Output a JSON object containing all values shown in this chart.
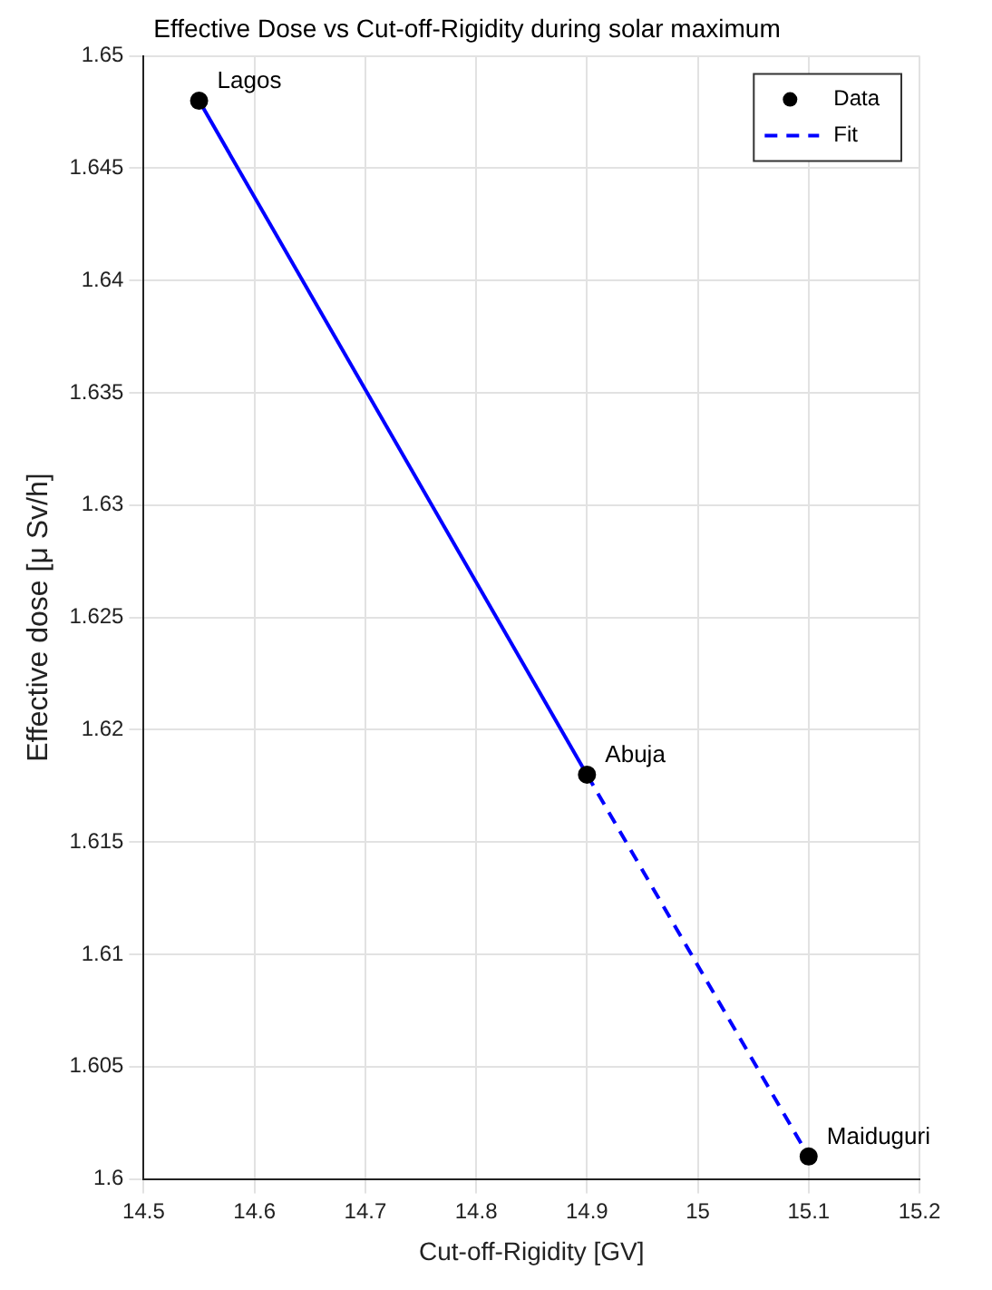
{
  "chart_data": {
    "type": "scatter",
    "title": "Effective Dose vs Cut-off-Rigidity during solar maximum",
    "xlabel": "Cut-off-Rigidity [GV]",
    "ylabel": "Effective dose [μ Sv/h]",
    "series": [
      {
        "name": "Data",
        "type": "scatter",
        "color": "#000000",
        "x": [
          14.55,
          14.9,
          15.1
        ],
        "values": [
          1.648,
          1.618,
          1.601
        ],
        "marker": "circle"
      },
      {
        "name": "Fit",
        "type": "line",
        "color": "#0000ff",
        "x": [
          14.9,
          15.1
        ],
        "values": [
          1.618,
          1.601
        ],
        "line_style": "dashed",
        "marker": "none"
      },
      {
        "type": "line",
        "color": "#0000ff",
        "x": [
          14.55,
          14.9
        ],
        "values": [
          1.648,
          1.618
        ],
        "line_style": "solid",
        "marker": "none"
      }
    ],
    "annotations": [
      {
        "text": "Lagos",
        "x": 14.55,
        "y": 1.648
      },
      {
        "text": "Abuja",
        "x": 14.9,
        "y": 1.618
      },
      {
        "text": "Maiduguri",
        "x": 15.1,
        "y": 1.601
      }
    ],
    "xlim": [
      14.5,
      15.2
    ],
    "xticks": [
      14.5,
      14.6,
      14.7,
      14.8,
      14.9,
      15,
      15.1,
      15.2
    ],
    "ylim": [
      1.6,
      1.65
    ],
    "yticks": [
      1.6,
      1.605,
      1.61,
      1.615,
      1.62,
      1.625,
      1.63,
      1.635,
      1.64,
      1.645,
      1.65
    ],
    "grid": true,
    "legend": "top right"
  }
}
